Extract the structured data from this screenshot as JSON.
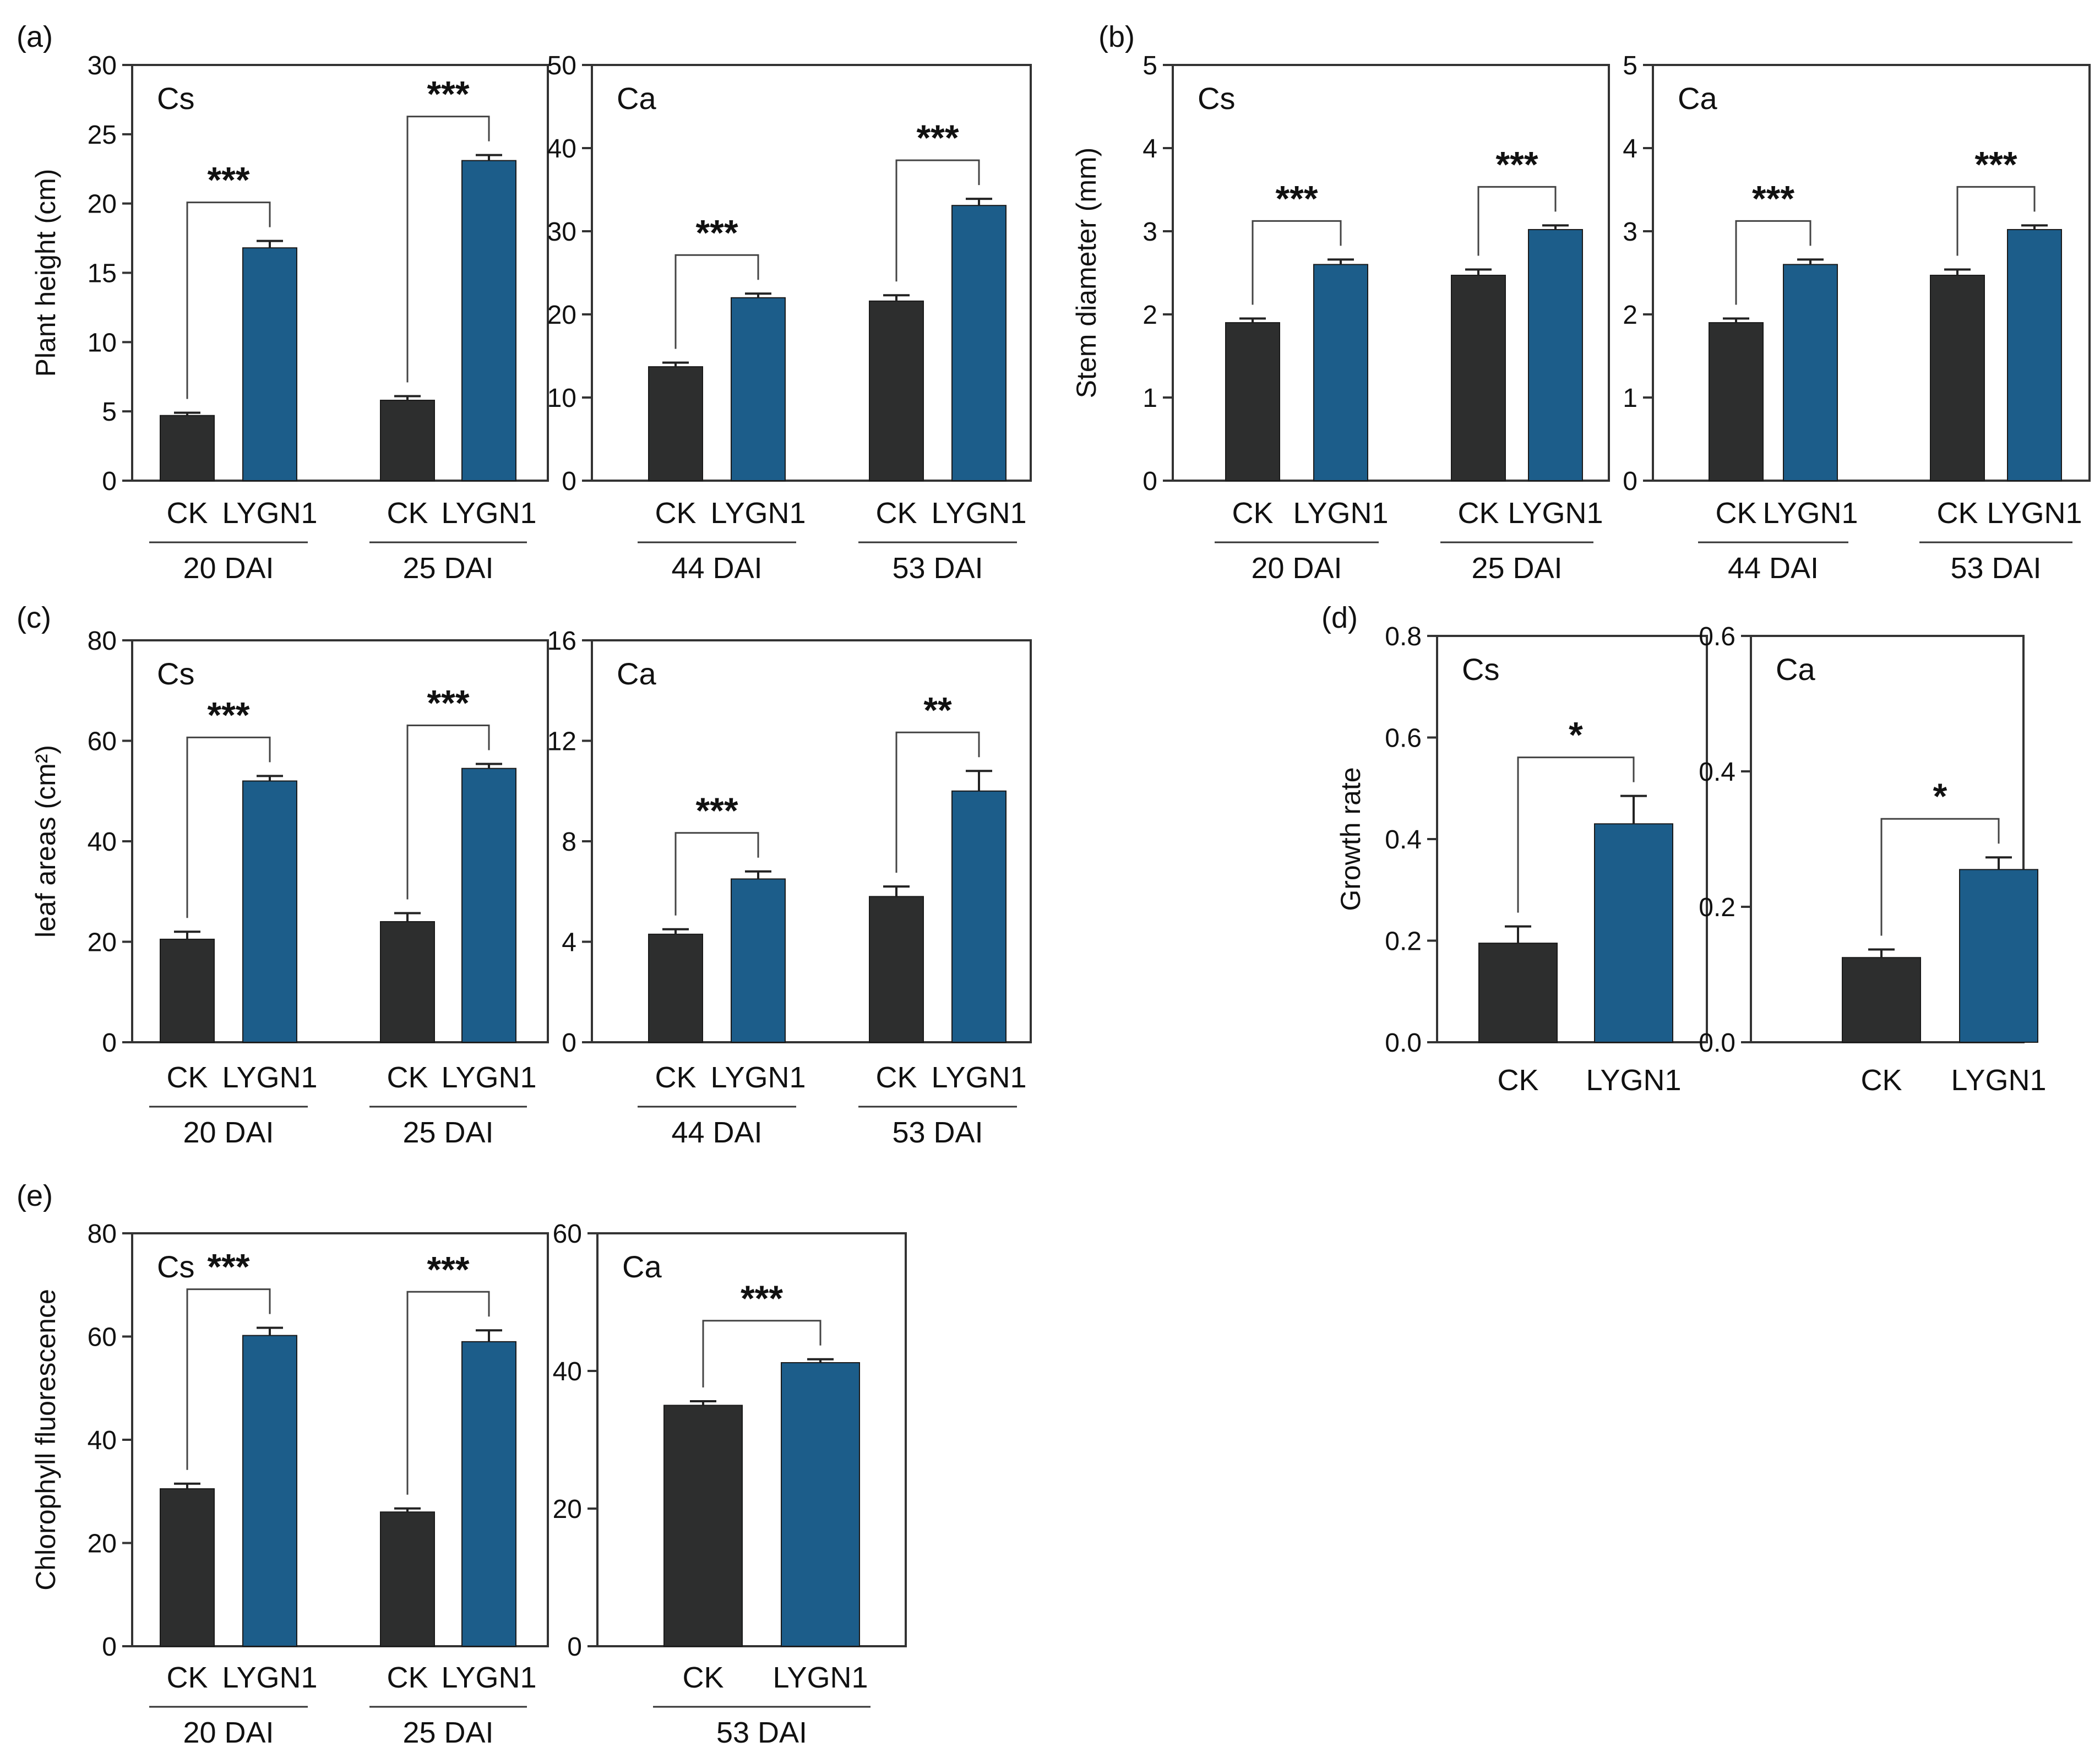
{
  "colors": {
    "ck": "#2d2e2e",
    "lygn1": "#1c5d8a",
    "axis": "#333333"
  },
  "chart_data": [
    {
      "type": "bar",
      "panel": "(a)",
      "species": "Cs",
      "ylabel": "Plant height (cm)",
      "ylim": [
        0,
        30
      ],
      "yticks": [
        "0",
        "5",
        "10",
        "15",
        "20",
        "25",
        "30"
      ],
      "categories": [
        "CK",
        "LYGN1"
      ],
      "groups": [
        {
          "label": "20 DAI",
          "values": [
            4.7,
            16.8
          ],
          "errors": [
            0.2,
            0.5
          ],
          "sig": "***"
        },
        {
          "label": "25 DAI",
          "values": [
            5.8,
            23.1
          ],
          "errors": [
            0.3,
            0.4
          ],
          "sig": "***"
        }
      ]
    },
    {
      "type": "bar",
      "panel": "",
      "species": "Ca",
      "ylabel": "",
      "ylim": [
        0,
        50
      ],
      "yticks": [
        "0",
        "10",
        "20",
        "30",
        "40",
        "50"
      ],
      "categories": [
        "CK",
        "LYGN1"
      ],
      "groups": [
        {
          "label": "44 DAI",
          "values": [
            13.7,
            22.0
          ],
          "errors": [
            0.5,
            0.5
          ],
          "sig": "***"
        },
        {
          "label": "53 DAI",
          "values": [
            21.6,
            33.1
          ],
          "errors": [
            0.7,
            0.8
          ],
          "sig": "***"
        }
      ]
    },
    {
      "type": "bar",
      "panel": "(b)",
      "species": "Cs",
      "ylabel": "Stem diameter (mm)",
      "ylim": [
        0,
        5
      ],
      "yticks": [
        "0",
        "1",
        "2",
        "3",
        "4",
        "5"
      ],
      "categories": [
        "CK",
        "LYGN1"
      ],
      "groups": [
        {
          "label": "20 DAI",
          "values": [
            1.9,
            2.6
          ],
          "errors": [
            0.05,
            0.06
          ],
          "sig": "***"
        },
        {
          "label": "25 DAI",
          "values": [
            2.47,
            3.02
          ],
          "errors": [
            0.07,
            0.05
          ],
          "sig": "***"
        }
      ]
    },
    {
      "type": "bar",
      "panel": "",
      "species": "Ca",
      "ylabel": "",
      "ylim": [
        0,
        5
      ],
      "yticks": [
        "0",
        "1",
        "2",
        "3",
        "4",
        "5"
      ],
      "categories": [
        "CK",
        "LYGN1"
      ],
      "groups": [
        {
          "label": "44 DAI",
          "values": [
            1.9,
            2.6
          ],
          "errors": [
            0.05,
            0.06
          ],
          "sig": "***"
        },
        {
          "label": "53 DAI",
          "values": [
            2.47,
            3.02
          ],
          "errors": [
            0.07,
            0.05
          ],
          "sig": "***"
        }
      ]
    },
    {
      "type": "bar",
      "panel": "(c)",
      "species": "Cs",
      "ylabel": "leaf areas (cm²)",
      "ylim": [
        0,
        80
      ],
      "yticks": [
        "0",
        "20",
        "40",
        "60",
        "80"
      ],
      "categories": [
        "CK",
        "LYGN1"
      ],
      "groups": [
        {
          "label": "20 DAI",
          "values": [
            20.5,
            52.0
          ],
          "errors": [
            1.5,
            1.0
          ],
          "sig": "***"
        },
        {
          "label": "25 DAI",
          "values": [
            24.0,
            54.5
          ],
          "errors": [
            1.7,
            0.9
          ],
          "sig": "***"
        }
      ]
    },
    {
      "type": "bar",
      "panel": "",
      "species": "Ca",
      "ylabel": "",
      "ylim": [
        0,
        16
      ],
      "yticks": [
        "0",
        "4",
        "8",
        "12",
        "16"
      ],
      "categories": [
        "CK",
        "LYGN1"
      ],
      "groups": [
        {
          "label": "44 DAI",
          "values": [
            4.3,
            6.5
          ],
          "errors": [
            0.2,
            0.3
          ],
          "sig": "***"
        },
        {
          "label": "53 DAI",
          "values": [
            5.8,
            10.0
          ],
          "errors": [
            0.4,
            0.8
          ],
          "sig": "**"
        }
      ]
    },
    {
      "type": "bar",
      "panel": "(d)",
      "species": "Cs",
      "ylabel": "Growth rate",
      "ylim": [
        0,
        0.8
      ],
      "yticks": [
        "0.0",
        "0.2",
        "0.4",
        "0.6",
        "0.8"
      ],
      "categories": [
        "CK",
        "LYGN1"
      ],
      "groups": [
        {
          "label": "",
          "values": [
            0.195,
            0.43
          ],
          "errors": [
            0.033,
            0.055
          ],
          "sig": "*"
        }
      ]
    },
    {
      "type": "bar",
      "panel": "",
      "species": "Ca",
      "ylabel": "",
      "ylim": [
        0,
        0.6
      ],
      "yticks": [
        "0.0",
        "0.2",
        "0.4",
        "0.6"
      ],
      "categories": [
        "CK",
        "LYGN1"
      ],
      "groups": [
        {
          "label": "",
          "values": [
            0.125,
            0.255
          ],
          "errors": [
            0.012,
            0.018
          ],
          "sig": "*"
        }
      ]
    },
    {
      "type": "bar",
      "panel": "(e)",
      "species": "Cs",
      "ylabel": "Chlorophyll fluorescence",
      "ylim": [
        0,
        80
      ],
      "yticks": [
        "0",
        "20",
        "40",
        "60",
        "80"
      ],
      "categories": [
        "CK",
        "LYGN1"
      ],
      "groups": [
        {
          "label": "20 DAI",
          "values": [
            30.5,
            60.2
          ],
          "errors": [
            1.0,
            1.5
          ],
          "sig": "***"
        },
        {
          "label": "25 DAI",
          "values": [
            26.0,
            59.0
          ],
          "errors": [
            0.7,
            2.2
          ],
          "sig": "***"
        }
      ]
    },
    {
      "type": "bar",
      "panel": "",
      "species": "Ca",
      "ylabel": "",
      "ylim": [
        0,
        60
      ],
      "yticks": [
        "0",
        "20",
        "40",
        "60"
      ],
      "categories": [
        "CK",
        "LYGN1"
      ],
      "groups": [
        {
          "label": "53 DAI",
          "values": [
            35.0,
            41.2
          ],
          "errors": [
            0.6,
            0.5
          ],
          "sig": "***"
        }
      ]
    }
  ]
}
